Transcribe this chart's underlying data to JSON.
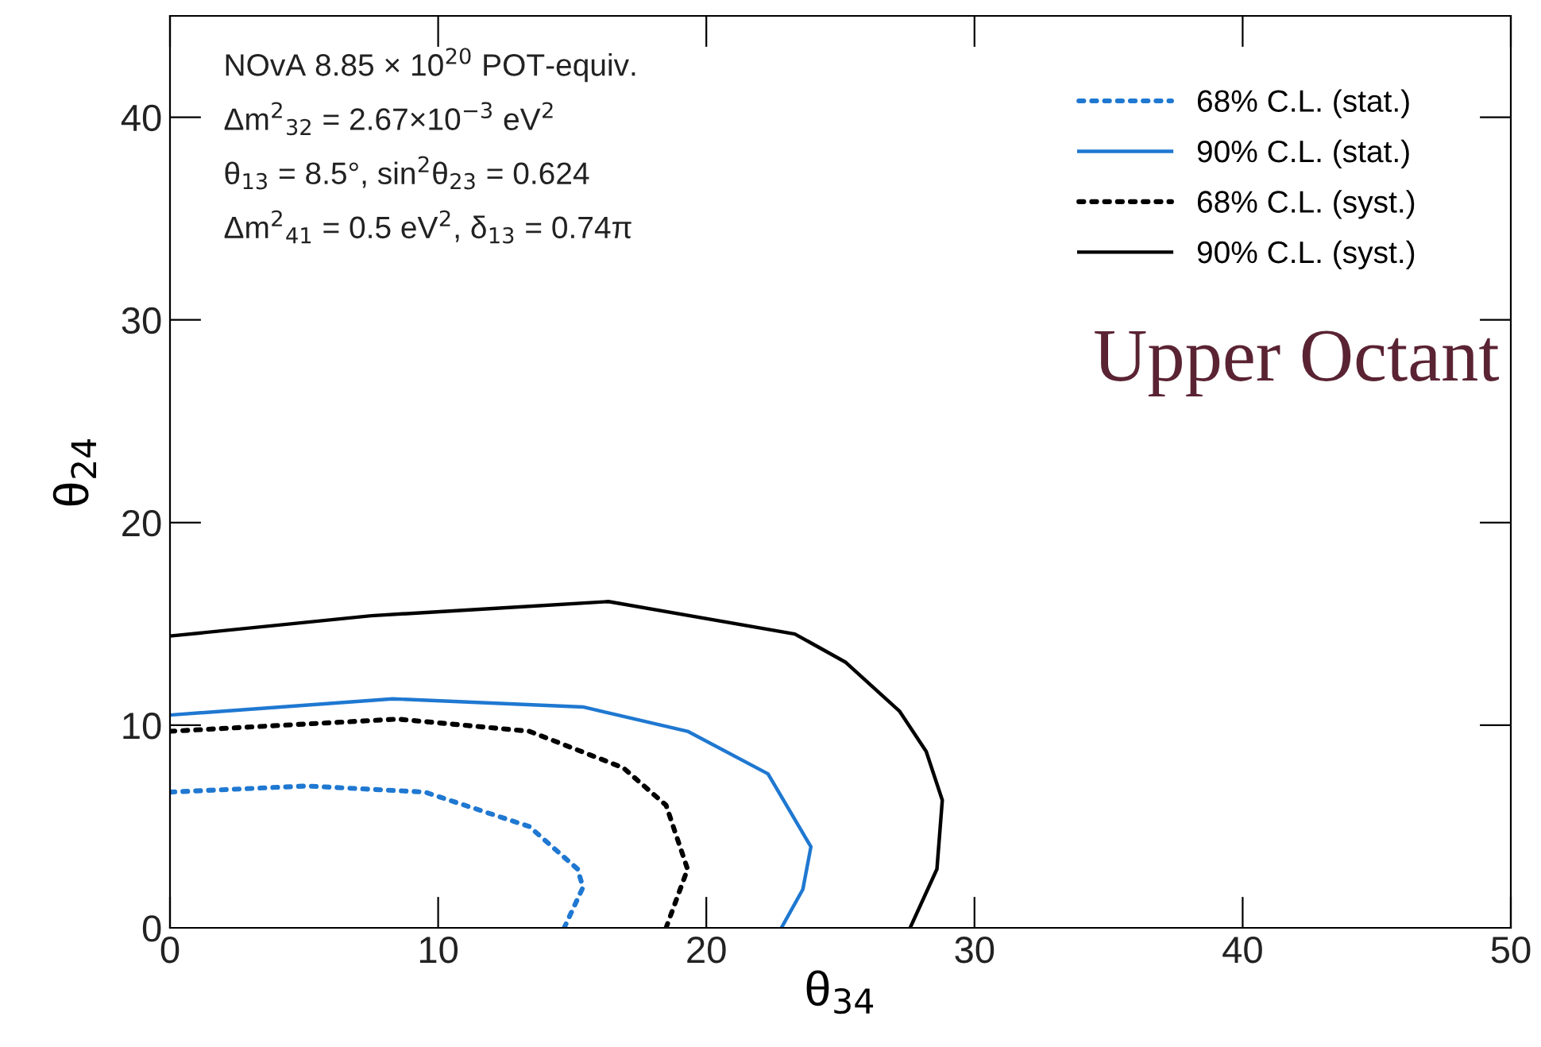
{
  "chart_data": {
    "type": "line",
    "xlabel": "θ$_{34}$",
    "ylabel": "θ$_{24}$",
    "xlim": [
      0,
      50
    ],
    "xticks": [
      0,
      10,
      20,
      30,
      40,
      50
    ],
    "ylim": [
      0,
      45
    ],
    "yticks": [
      0,
      10,
      20,
      30,
      40
    ],
    "grid": false,
    "legend": "top right",
    "marker": "none",
    "annotations": [
      "NOvA 8.85 × 10$^{20}$ POT-equiv.\nΔm$^{2}$$_{32}$ = 2.67×10$^{−3}$ eV$^{2}$\nθ$_{13}$ = 8.5°, sin$^{2}$θ$_{23}$ = 0.624\nΔm$^{2}$$_{41}$ = 0.5 eV$^{2}$, δ$_{13}$ = 0.74π",
      "Upper Octant"
    ],
    "series": [
      {
        "name": "68% C.L. (stat.)",
        "color": "#1f78d1",
        "line_style": "dotted",
        "x": [
          0,
          5.1,
          9.5,
          13.4,
          15.2,
          15.4,
          14.7
        ],
        "values": [
          6.7,
          7.0,
          6.7,
          5.0,
          2.9,
          2.0,
          0
        ]
      },
      {
        "name": "90% C.L. (stat.)",
        "color": "#1f78d1",
        "line_style": "solid",
        "x": [
          0,
          8.3,
          15.4,
          19.3,
          22.3,
          23.9,
          23.6,
          22.8
        ],
        "values": [
          10.5,
          11.3,
          10.9,
          9.7,
          7.6,
          4.0,
          1.9,
          0
        ]
      },
      {
        "name": "68% C.L. (syst.)",
        "color": "#000000",
        "line_style": "dotted",
        "x": [
          0,
          8.5,
          13.4,
          16.9,
          18.5,
          19.3,
          18.5
        ],
        "values": [
          9.7,
          10.3,
          9.7,
          7.9,
          6.05,
          2.9,
          0
        ]
      },
      {
        "name": "90% C.L. (syst.)",
        "color": "#000000",
        "line_style": "solid",
        "x": [
          0,
          7.5,
          16.35,
          23.3,
          25.2,
          27.2,
          28.2,
          28.8,
          28.6,
          27.6
        ],
        "values": [
          14.4,
          15.4,
          16.1,
          14.5,
          13.1,
          10.7,
          8.7,
          6.3,
          2.9,
          0
        ]
      }
    ]
  }
}
